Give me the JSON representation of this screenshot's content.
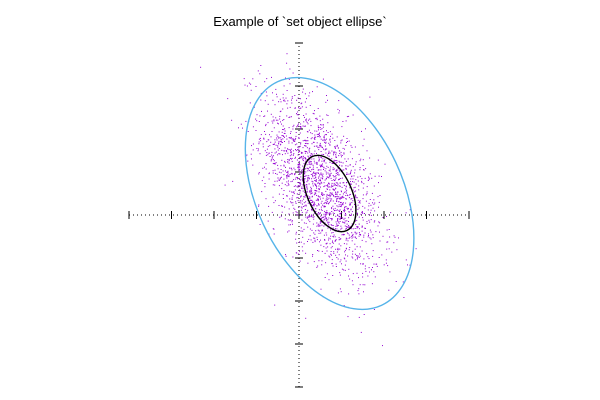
{
  "chart_data": {
    "type": "scatter",
    "title": "Example of `set object ellipse`",
    "xlabel": "",
    "ylabel": "",
    "xlim": [
      -4,
      4
    ],
    "ylim": [
      -4,
      4
    ],
    "axes": "zero-axes, dotted, tics only, no tick labels",
    "grid": false,
    "legend": "none",
    "point_color": "#9400d3",
    "points": {
      "count": 2000,
      "center": [
        0.5,
        0.7
      ],
      "description": "bivariate normal cloud, negatively correlated"
    },
    "ellipses": [
      {
        "name": "inner",
        "center": [
          0.72,
          0.5
        ],
        "major": 1.92,
        "minor": 1.02,
        "angle_deg": -65,
        "color": "#000000"
      },
      {
        "name": "outer",
        "center": [
          0.72,
          0.5
        ],
        "major": 5.8,
        "minor": 3.4,
        "angle_deg": -65,
        "color": "#56b4e9"
      }
    ]
  }
}
